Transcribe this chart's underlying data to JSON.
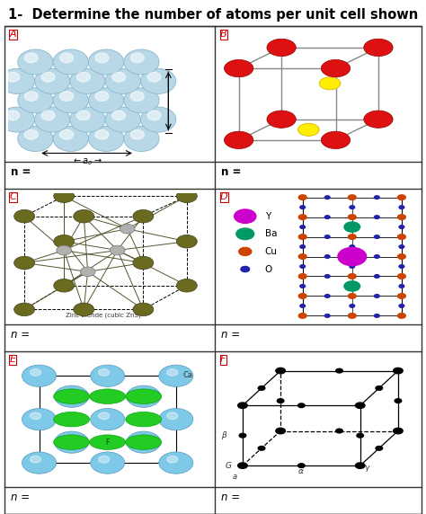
{
  "title": "1-  Determine the number of atoms per unit cell shown",
  "title_fontsize": 10.5,
  "label_color": "#cc0000",
  "bg_color": "#ffffff",
  "sphere_color_A": "#b8d8e8",
  "sphere_edge_A": "#88b8cc",
  "red_atom": "#dd1111",
  "yellow_atom": "#ffee00",
  "olive_atom": "#6b6b20",
  "gray_atom": "#b0b0b0",
  "ca_color": "#7ec8e8",
  "f_color": "#22cc22",
  "y_color": "#cc00cc",
  "ba_color": "#009966",
  "cu_color": "#cc4400",
  "o_color": "#2222aa",
  "subtitle_C": "Zinc blende (cubic ZnS)",
  "legend_D_colors": [
    "#cc00cc",
    "#009966",
    "#cc4400",
    "#2222aa"
  ],
  "legend_D_labels": [
    "Y",
    "Ba",
    "Cu",
    "O"
  ],
  "n_labels": [
    "n =",
    "n =",
    "n =",
    "n =",
    "n =",
    "n ="
  ],
  "n_italic": [
    false,
    false,
    true,
    true,
    true,
    true
  ],
  "cell_labels": [
    "A",
    "B",
    "C",
    "D",
    "E",
    "F"
  ]
}
